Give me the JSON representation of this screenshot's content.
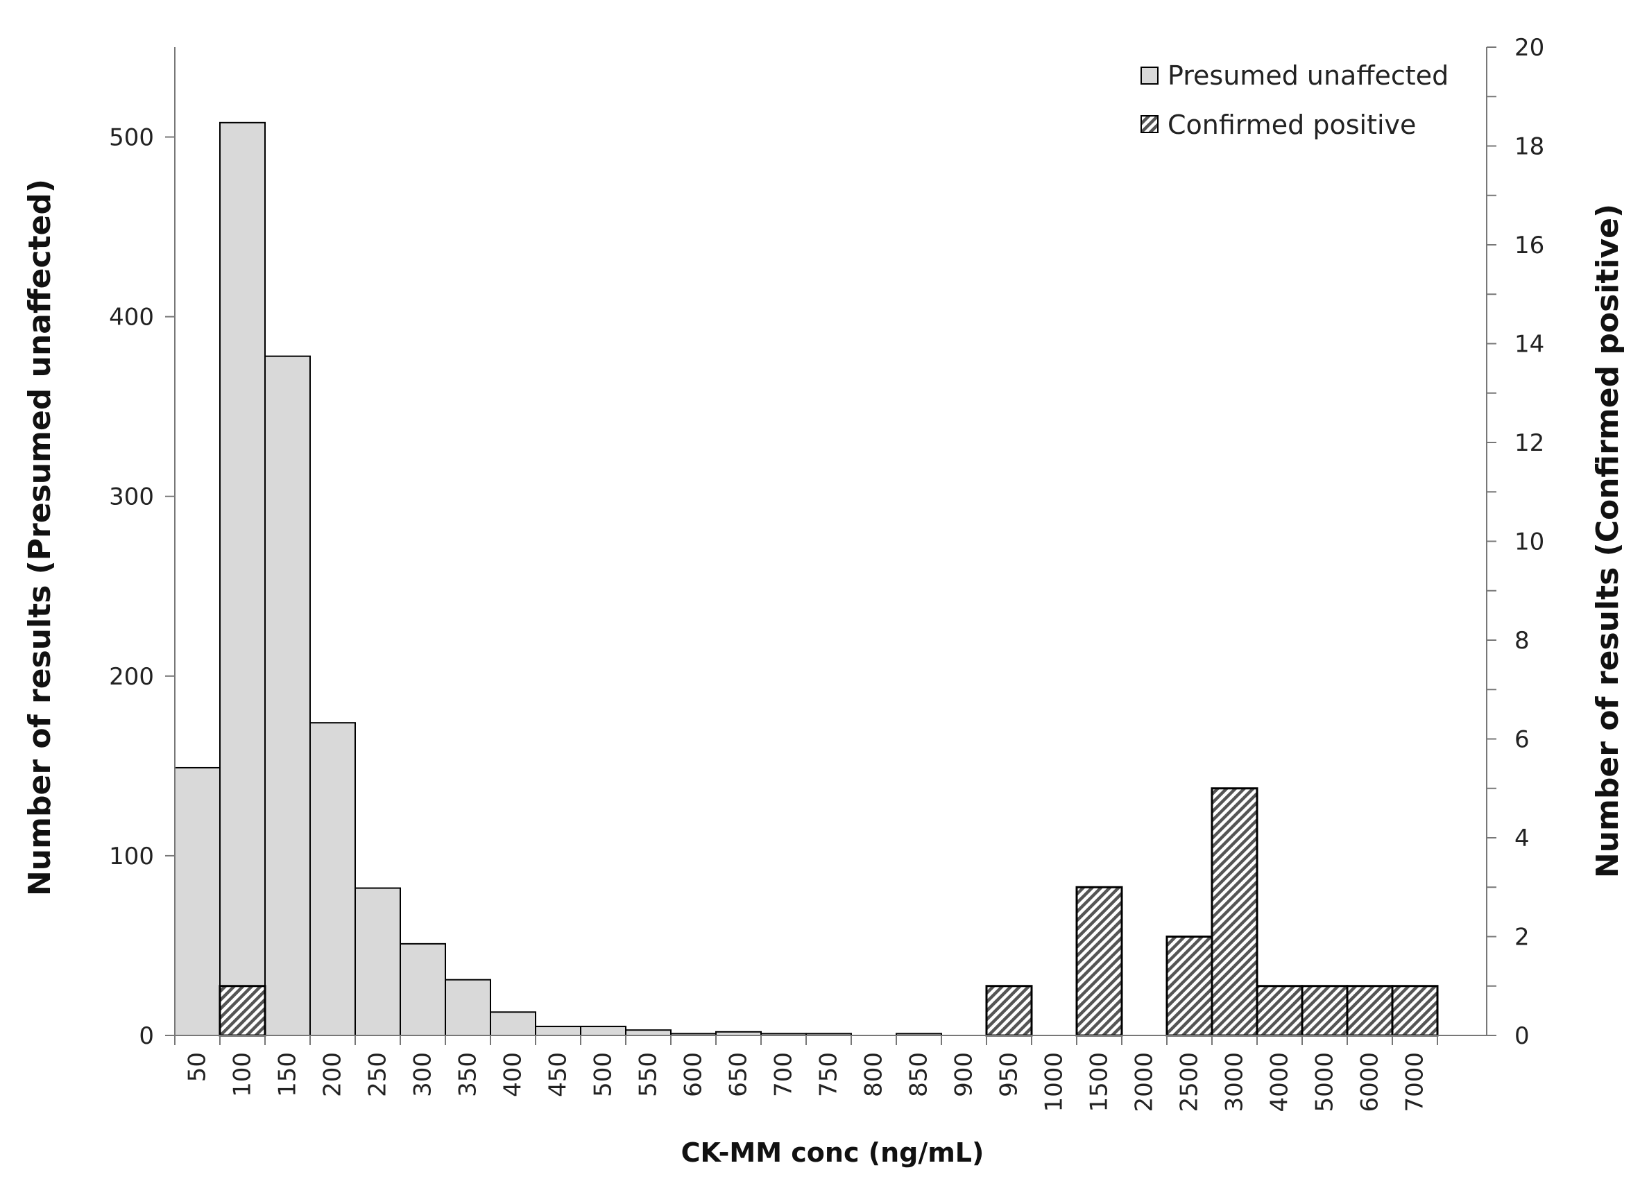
{
  "chart_data": {
    "type": "bar",
    "categories": [
      "50",
      "100",
      "150",
      "200",
      "250",
      "300",
      "350",
      "400",
      "450",
      "500",
      "550",
      "600",
      "650",
      "700",
      "750",
      "800",
      "850",
      "900",
      "950",
      "1000",
      "1500",
      "2000",
      "2500",
      "3000",
      "4000",
      "5000",
      "6000",
      "7000"
    ],
    "series": [
      {
        "name": "Presumed unaffected",
        "axis": "left",
        "color": "#d9d9d9",
        "values": [
          149,
          508,
          378,
          174,
          82,
          51,
          31,
          13,
          5,
          5,
          3,
          1,
          2,
          1,
          1,
          0,
          1,
          0,
          0,
          0,
          0,
          0,
          0,
          0,
          0,
          0,
          0,
          0
        ]
      },
      {
        "name": "Confirmed positive",
        "axis": "right",
        "color": "#7f7f7f",
        "pattern": "diagonal-hatch",
        "values": [
          0,
          1,
          0,
          0,
          0,
          0,
          0,
          0,
          0,
          0,
          0,
          0,
          0,
          0,
          0,
          0,
          0,
          0,
          1,
          0,
          3,
          0,
          2,
          5,
          1,
          1,
          1,
          1
        ]
      }
    ],
    "xlabel": "CK-MM conc (ng/mL)",
    "ylabel": "Number of results (Presumed unaffected)",
    "y2label": "Number of results (Confirmed positive)",
    "ylim": [
      0,
      550
    ],
    "y2lim": [
      0,
      20
    ],
    "yticks": [
      0,
      100,
      200,
      300,
      400,
      500
    ],
    "y2ticks": [
      0,
      2,
      4,
      6,
      8,
      10,
      12,
      14,
      16,
      18,
      20
    ],
    "grid": false,
    "legend_position": "top-right"
  }
}
